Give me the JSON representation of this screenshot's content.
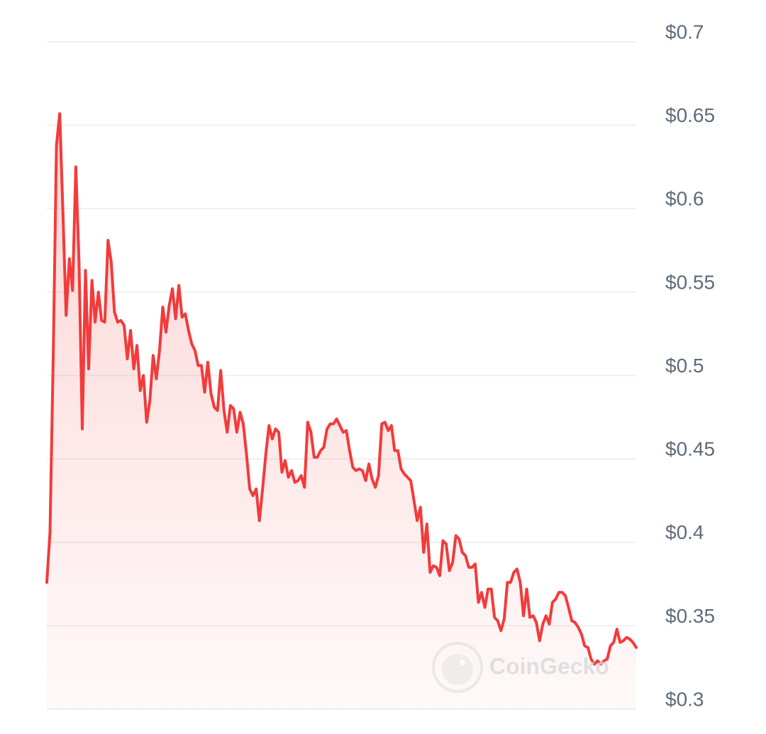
{
  "chart_data": {
    "type": "line",
    "color": "#f23b3b",
    "grid": true,
    "watermark": "CoinGecko",
    "ylim": [
      0.3,
      0.7
    ],
    "yticks": [
      {
        "value": 0.3,
        "label": "$0.3"
      },
      {
        "value": 0.35,
        "label": "$0.35"
      },
      {
        "value": 0.4,
        "label": "$0.4"
      },
      {
        "value": 0.45,
        "label": "$0.45"
      },
      {
        "value": 0.5,
        "label": "$0.5"
      },
      {
        "value": 0.55,
        "label": "$0.55"
      },
      {
        "value": 0.6,
        "label": "$0.6"
      },
      {
        "value": 0.65,
        "label": "$0.65"
      },
      {
        "value": 0.7,
        "label": "$0.7"
      }
    ],
    "values": [
      0.376,
      0.406,
      0.513,
      0.638,
      0.657,
      0.598,
      0.536,
      0.57,
      0.551,
      0.625,
      0.568,
      0.468,
      0.563,
      0.504,
      0.557,
      0.532,
      0.55,
      0.533,
      0.532,
      0.581,
      0.568,
      0.538,
      0.532,
      0.533,
      0.53,
      0.51,
      0.527,
      0.504,
      0.518,
      0.491,
      0.5,
      0.472,
      0.485,
      0.512,
      0.498,
      0.515,
      0.541,
      0.526,
      0.542,
      0.552,
      0.534,
      0.554,
      0.535,
      0.537,
      0.527,
      0.519,
      0.515,
      0.506,
      0.506,
      0.49,
      0.508,
      0.489,
      0.481,
      0.479,
      0.503,
      0.479,
      0.466,
      0.482,
      0.48,
      0.466,
      0.478,
      0.471,
      0.453,
      0.432,
      0.428,
      0.432,
      0.413,
      0.432,
      0.453,
      0.47,
      0.462,
      0.468,
      0.466,
      0.442,
      0.449,
      0.439,
      0.443,
      0.436,
      0.437,
      0.44,
      0.433,
      0.472,
      0.466,
      0.451,
      0.451,
      0.455,
      0.457,
      0.468,
      0.471,
      0.471,
      0.474,
      0.47,
      0.466,
      0.467,
      0.455,
      0.445,
      0.443,
      0.444,
      0.443,
      0.437,
      0.447,
      0.438,
      0.433,
      0.44,
      0.471,
      0.472,
      0.467,
      0.47,
      0.455,
      0.455,
      0.444,
      0.441,
      0.439,
      0.437,
      0.425,
      0.413,
      0.421,
      0.394,
      0.411,
      0.382,
      0.386,
      0.385,
      0.38,
      0.401,
      0.399,
      0.383,
      0.388,
      0.404,
      0.402,
      0.394,
      0.392,
      0.385,
      0.385,
      0.387,
      0.364,
      0.37,
      0.361,
      0.372,
      0.372,
      0.355,
      0.353,
      0.347,
      0.354,
      0.376,
      0.376,
      0.382,
      0.384,
      0.376,
      0.356,
      0.372,
      0.355,
      0.356,
      0.352,
      0.341,
      0.351,
      0.356,
      0.351,
      0.364,
      0.366,
      0.37,
      0.37,
      0.368,
      0.361,
      0.353,
      0.352,
      0.349,
      0.345,
      0.338,
      0.337,
      0.33,
      0.327,
      0.329,
      0.327,
      0.329,
      0.33,
      0.338,
      0.34,
      0.348,
      0.34,
      0.341,
      0.343,
      0.342,
      0.34,
      0.337
    ]
  }
}
